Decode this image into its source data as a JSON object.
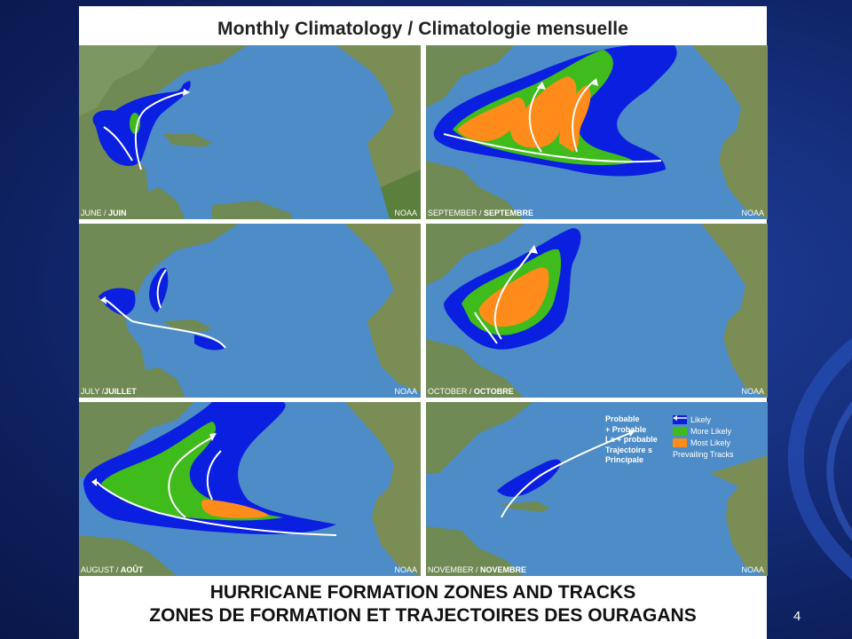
{
  "figure": {
    "title": "Monthly Climatology / Climatologie mensuelle",
    "footer_line1": "HURRICANE FORMATION ZONES AND TRACKS",
    "footer_line2": "ZONES DE FORMATION ET TRAJECTOIRES DES OURAGANS"
  },
  "slide": {
    "number": "4"
  },
  "colors": {
    "ocean": "#4d8cc7",
    "likely": "#0a1fe0",
    "more_likely": "#3fbb1c",
    "most_likely": "#ff8c1a",
    "land": "#6f8a55"
  },
  "panels": [
    {
      "id": "june",
      "month_en": "JUNE",
      "month_fr": "JUIN",
      "source": "NOAA"
    },
    {
      "id": "september",
      "month_en": "SEPTEMBER",
      "month_fr": "SEPTEMBRE",
      "source": "NOAA"
    },
    {
      "id": "july",
      "month_en": "JULY",
      "month_fr": "JUILLET",
      "source": "NOAA"
    },
    {
      "id": "october",
      "month_en": "OCTOBER",
      "month_fr": "OCTOBRE",
      "source": "NOAA"
    },
    {
      "id": "august",
      "month_en": "AUGUST",
      "month_fr": "AOÛT",
      "source": "NOAA"
    },
    {
      "id": "november",
      "month_en": "NOVEMBER",
      "month_fr": "NOVEMBRE",
      "source": "NOAA"
    }
  ],
  "legend": {
    "fr_labels": [
      "Probable",
      "+ Probable",
      "La + probable",
      "Trajectoire s",
      "Principale"
    ],
    "en_labels": [
      "Likely",
      "More Likely",
      "Most Likely"
    ],
    "tracks_label": "Prevailing Tracks"
  }
}
